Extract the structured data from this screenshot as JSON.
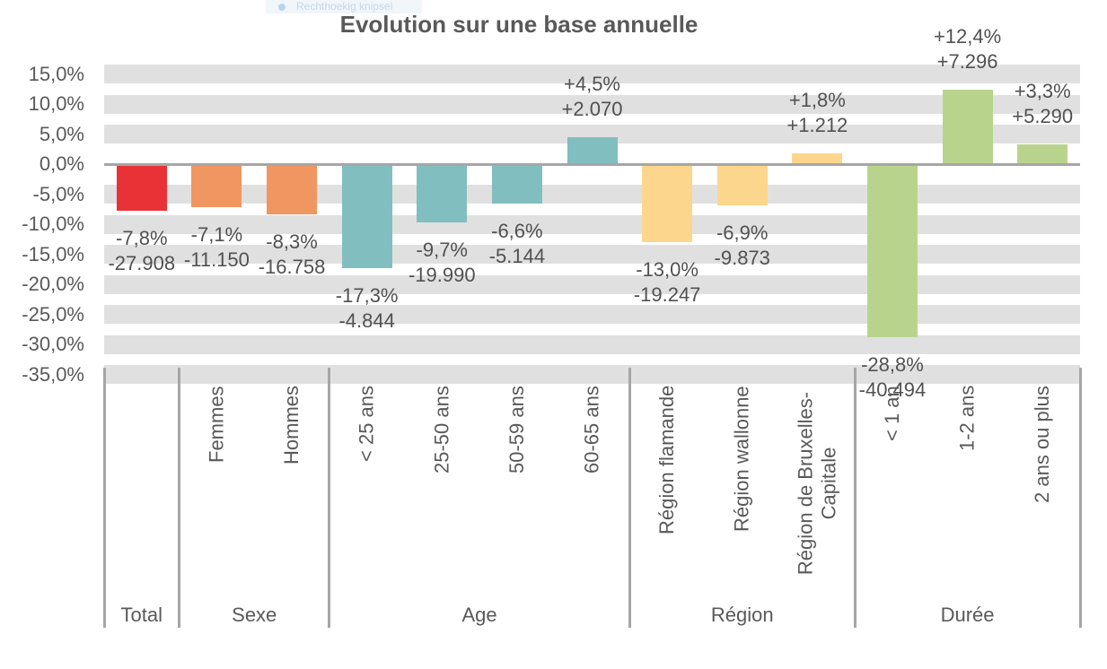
{
  "snip_overlay": {
    "label": "Rechthoekig knipsel"
  },
  "colors": {
    "background": "#FFFFFF",
    "stripe": "#E0E0E0",
    "axis_line": "#A6A6A6",
    "separator": "#A6A6A6",
    "axis_text": "#595959",
    "data_label_text": "#515151",
    "snip_bg": "#F1F6FB",
    "snip_text": "#C6D6E6",
    "snip_dot": "#BCD4EA"
  },
  "chart_data": {
    "type": "bar",
    "title": "Evolution sur une base annuelle",
    "legend": "none",
    "grid": "striped-horizontal-bands",
    "y_axis": {
      "unit": "%",
      "max_pct": 15,
      "min_pct": -35,
      "step_pct": 5,
      "tick_labels": [
        "15,0%",
        "10,0%",
        "5,0%",
        "0,0%",
        "-5,0%",
        "-10,0%",
        "-15,0%",
        "-20,0%",
        "-25,0%",
        "-30,0%",
        "-35,0%"
      ]
    },
    "groups": [
      {
        "name": "Total",
        "color": "#E93236",
        "bars": [
          {
            "label": "",
            "pct": -7.8,
            "pct_label": "-7,8%",
            "abs_label": "-27.908"
          }
        ]
      },
      {
        "name": "Sexe",
        "color": "#F09660",
        "bars": [
          {
            "label": "Femmes",
            "pct": -7.1,
            "pct_label": "-7,1%",
            "abs_label": "-11.150"
          },
          {
            "label": "Hommes",
            "pct": -8.3,
            "pct_label": "-8,3%",
            "abs_label": "-16.758"
          }
        ]
      },
      {
        "name": "Age",
        "color": "#81BEC0",
        "bars": [
          {
            "label": "< 25 ans",
            "pct": -17.3,
            "pct_label": "-17,3%",
            "abs_label": "-4.844"
          },
          {
            "label": "25-50 ans",
            "pct": -9.7,
            "pct_label": "-9,7%",
            "abs_label": "-19.990"
          },
          {
            "label": "50-59 ans",
            "pct": -6.6,
            "pct_label": "-6,6%",
            "abs_label": "-5.144"
          },
          {
            "label": "60-65 ans",
            "pct": 4.5,
            "pct_label": "+4,5%",
            "abs_label": "+2.070"
          }
        ]
      },
      {
        "name": "Région",
        "color": "#FCD68C",
        "bars": [
          {
            "label": "Région flamande",
            "pct": -13.0,
            "pct_label": "-13,0%",
            "abs_label": "-19.247"
          },
          {
            "label": "Région wallonne",
            "pct": -6.9,
            "pct_label": "-6,9%",
            "abs_label": "-9.873"
          },
          {
            "label": "Région de Bruxelles-Capitale",
            "label_lines": [
              "Région de Bruxelles-",
              "Capitale"
            ],
            "pct": 1.8,
            "pct_label": "+1,8%",
            "abs_label": "+1.212"
          }
        ]
      },
      {
        "name": "Durée",
        "color": "#B8D48C",
        "bars": [
          {
            "label": "< 1 an",
            "pct": -28.8,
            "pct_label": "-28,8%",
            "abs_label": "-40.494"
          },
          {
            "label": "1-2 ans",
            "pct": 12.4,
            "pct_label": "+12,4%",
            "abs_label": "+7.296"
          },
          {
            "label": "2 ans ou plus",
            "pct": 3.3,
            "pct_label": "+3,3%",
            "abs_label": "+5.290"
          }
        ]
      }
    ]
  }
}
